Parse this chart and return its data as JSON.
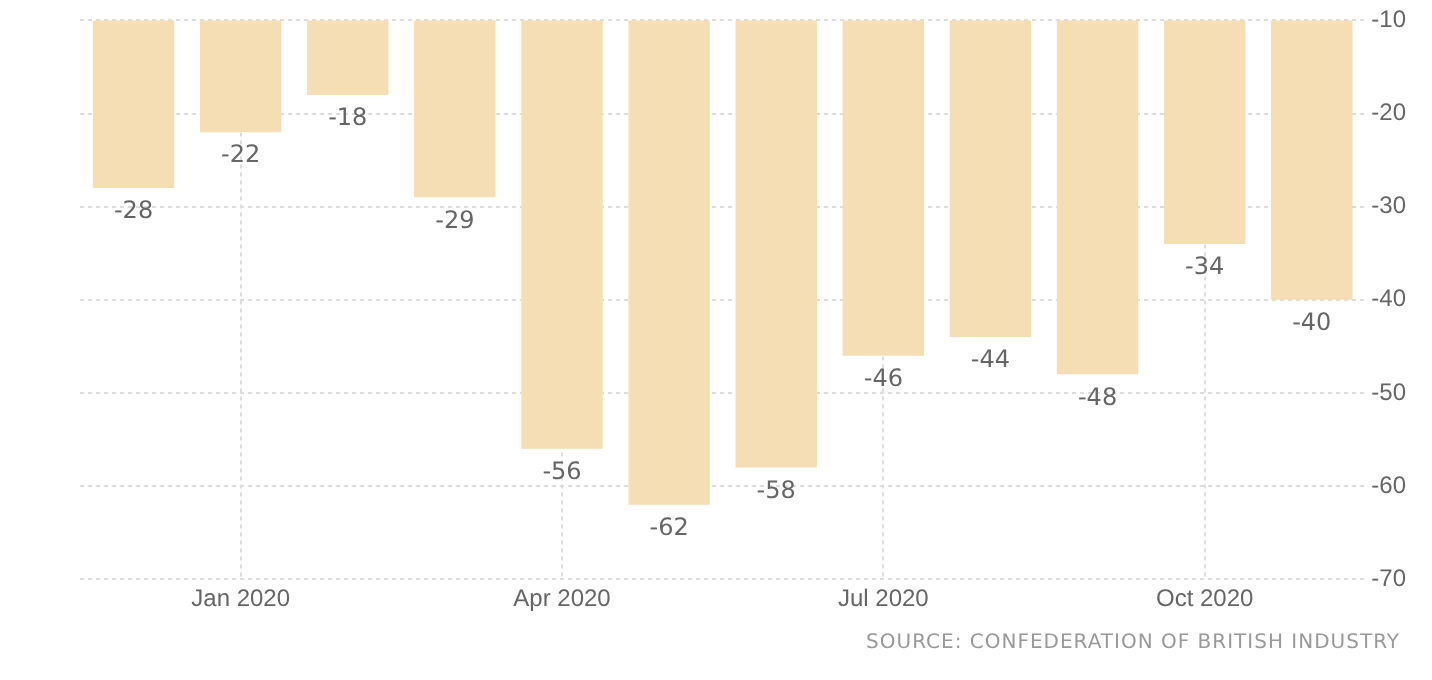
{
  "chart_data": {
    "type": "bar",
    "categories": [
      null,
      "Jan 2020",
      null,
      null,
      "Apr 2020",
      null,
      null,
      "Jul 2020",
      null,
      null,
      "Oct 2020",
      null
    ],
    "series": [
      {
        "color": "#f5deb3",
        "values": [
          -28,
          -22,
          -18,
          -29,
          -56,
          -62,
          -58,
          -46,
          -44,
          -48,
          -34,
          -40
        ]
      }
    ],
    "ylim": [
      -70,
      -10
    ],
    "yticks": [
      -70,
      -60,
      -50,
      -40,
      -30,
      -20,
      -10
    ],
    "grid": true,
    "legend": false,
    "data_labels": true,
    "annotations": [
      "SOURCE: CONFEDERATION OF BRITISH INDUSTRY"
    ]
  }
}
